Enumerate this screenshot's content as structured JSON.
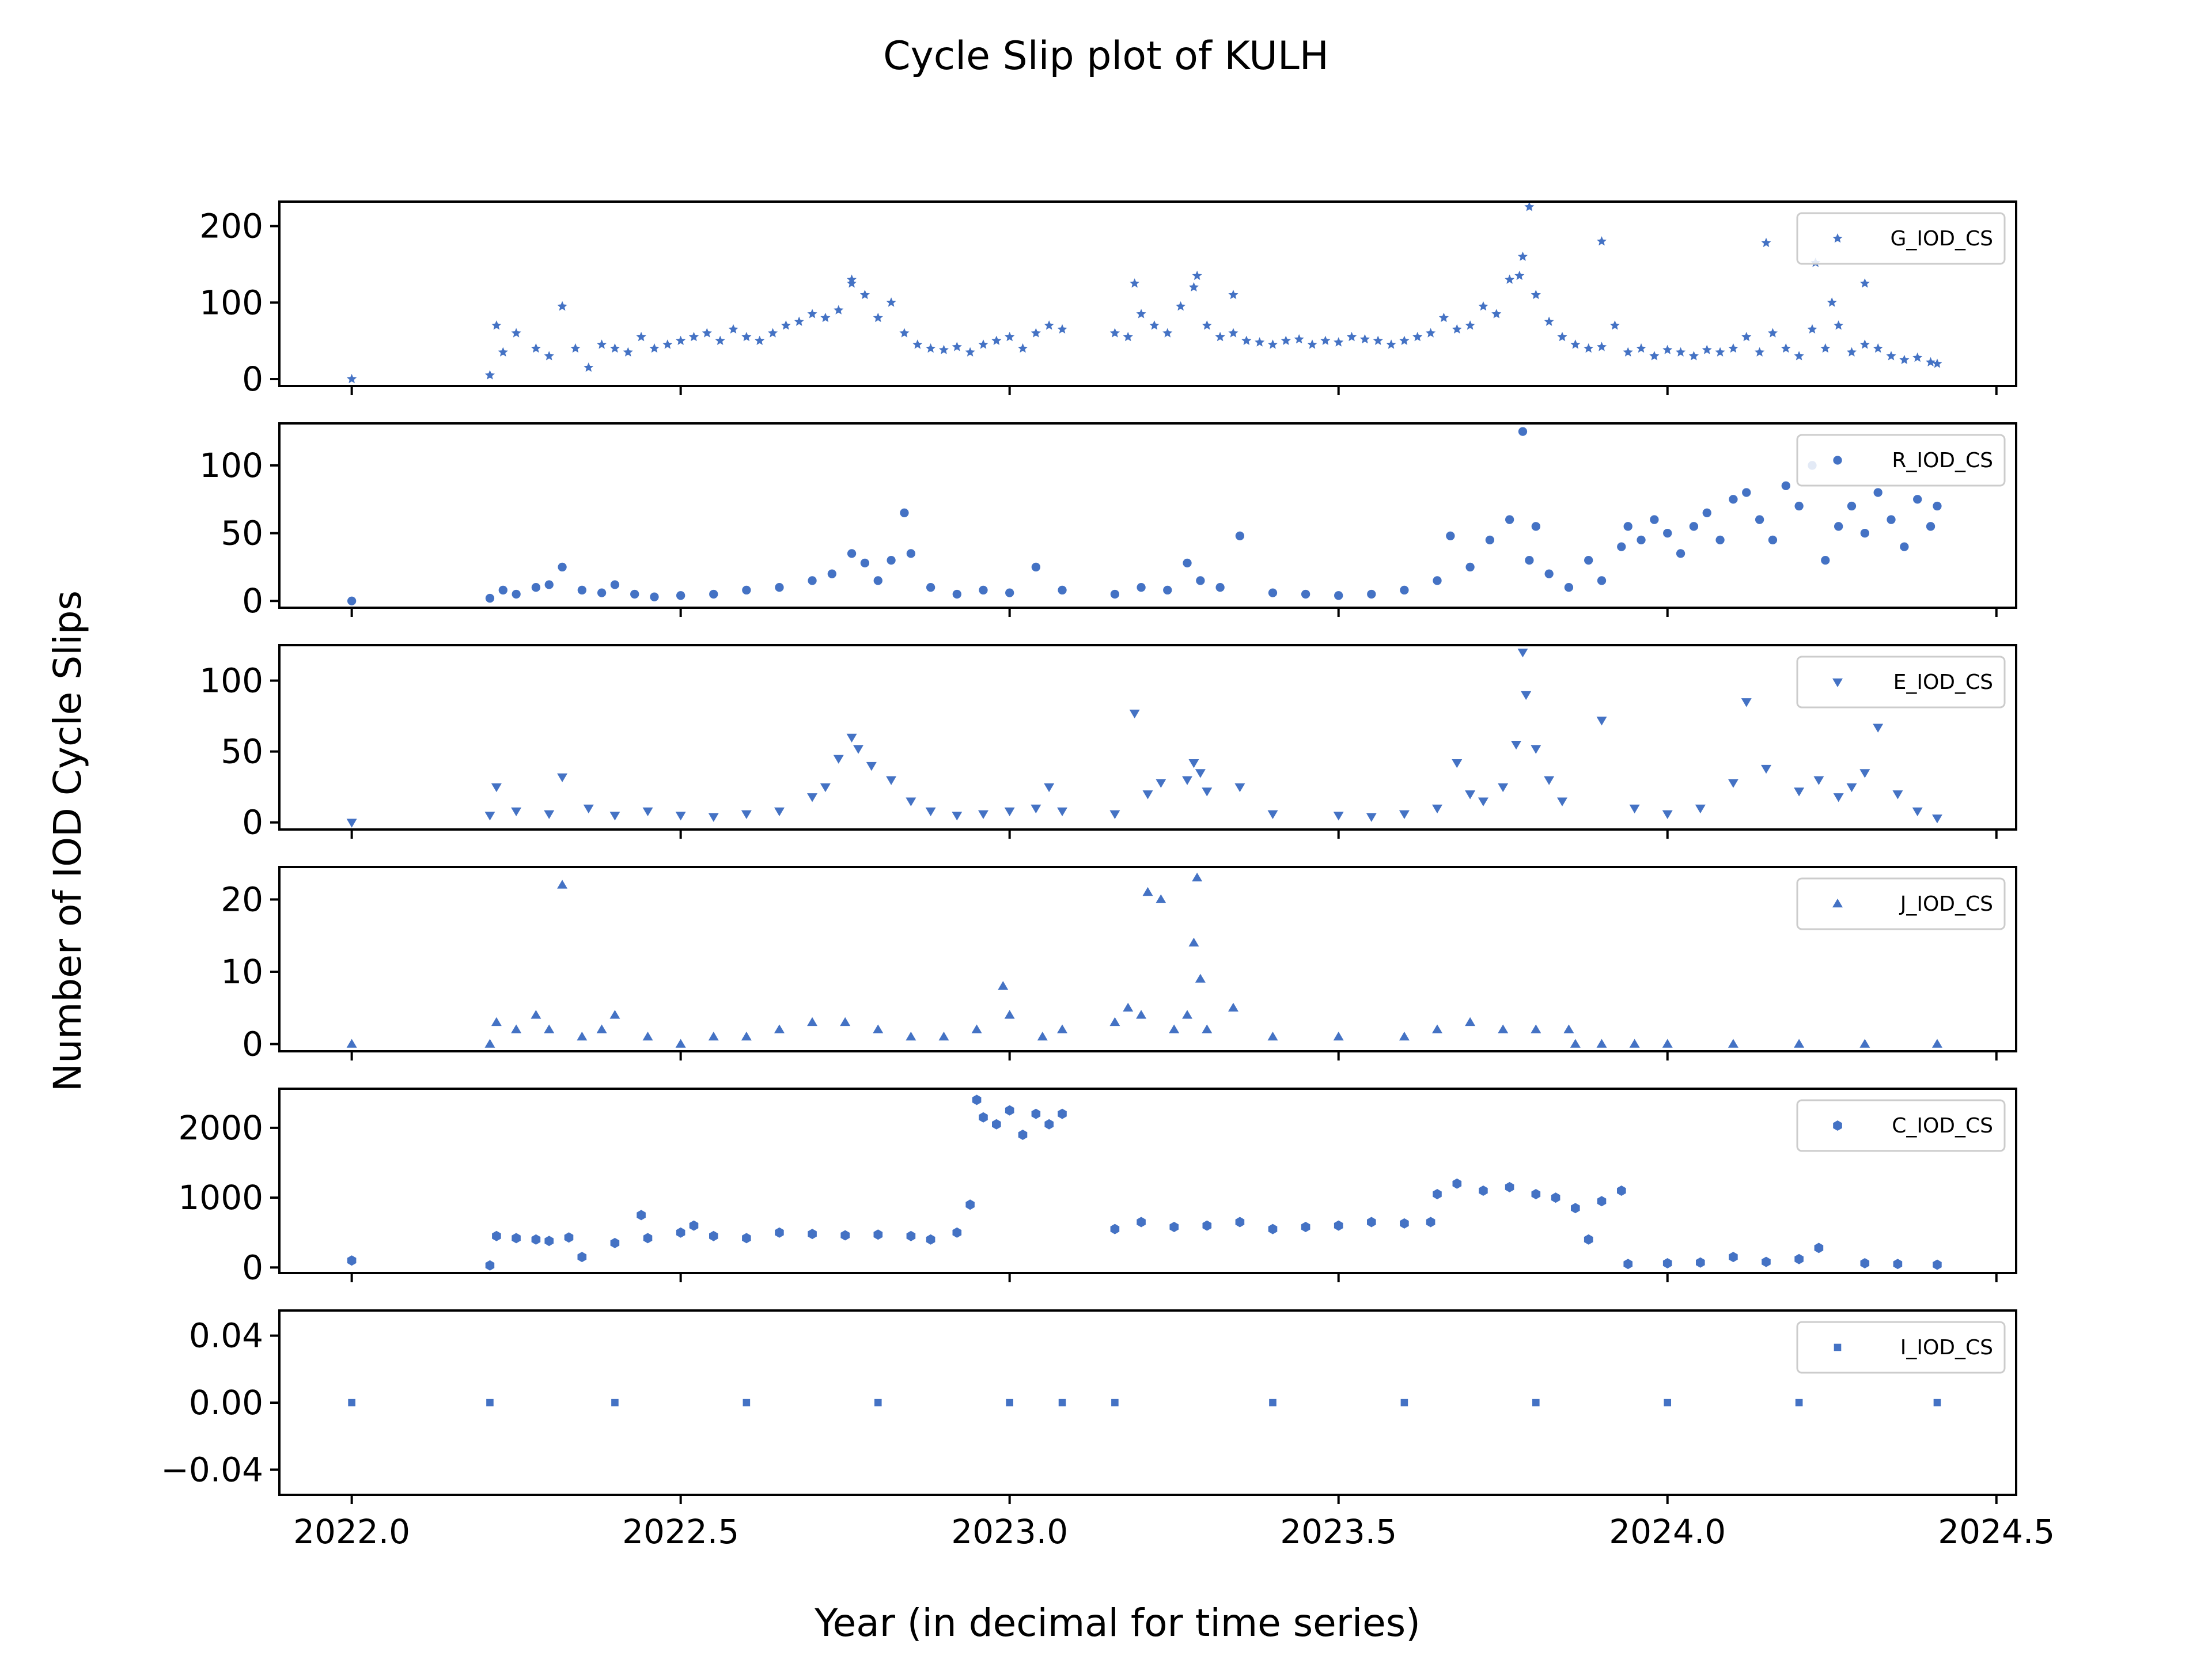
{
  "title": "Cycle Slip plot of KULH",
  "colors": {
    "marker": "#4472C4",
    "axis": "#000000",
    "legend_border": "#cccccc"
  },
  "chart_data": {
    "type": "scatter",
    "suptitle": "Cycle Slip plot of KULH",
    "xlabel": "Year (in decimal for time series)",
    "ylabel": "Number of IOD Cycle Slips",
    "xlim": [
      2021.89,
      2024.53
    ],
    "x_ticks": [
      2022.0,
      2022.5,
      2023.0,
      2023.5,
      2024.0,
      2024.5
    ],
    "x_tick_labels": [
      "2022.0",
      "2022.5",
      "2023.0",
      "2023.5",
      "2024.0",
      "2024.5"
    ],
    "legend_position": "top-right",
    "grid": false,
    "panels": [
      {
        "name": "G_IOD_CS",
        "marker": "star",
        "ylim": [
          -9,
          232
        ],
        "y_ticks": [
          0,
          100,
          200
        ],
        "y_tick_labels": [
          "0",
          "100",
          "200"
        ],
        "sample_x": [
          2022.0,
          2022.21,
          2022.22,
          2022.23,
          2022.25,
          2022.28,
          2022.3,
          2022.32,
          2022.34,
          2022.36,
          2022.38,
          2022.4,
          2022.42,
          2022.44,
          2022.46,
          2022.48,
          2022.5,
          2022.52,
          2022.54,
          2022.56,
          2022.58,
          2022.6,
          2022.62,
          2022.64,
          2022.66,
          2022.68,
          2022.7,
          2022.72,
          2022.74,
          2022.76,
          2022.78,
          2022.8,
          2022.82,
          2022.84,
          2022.86,
          2022.88,
          2022.9,
          2022.92,
          2022.94,
          2022.96,
          2022.98,
          2023.0,
          2023.02,
          2023.04,
          2023.06,
          2023.08,
          2023.16,
          2023.18,
          2023.2,
          2023.22,
          2023.24,
          2023.26,
          2023.28,
          2023.3,
          2023.32,
          2023.34,
          2023.36,
          2023.38,
          2023.4,
          2023.42,
          2023.44,
          2023.46,
          2023.48,
          2023.5,
          2023.52,
          2023.54,
          2023.56,
          2023.58,
          2023.6,
          2023.62,
          2023.64,
          2023.66,
          2023.68,
          2023.7,
          2023.72,
          2023.74,
          2023.76,
          2023.78,
          2023.8,
          2023.82,
          2023.84,
          2023.86,
          2023.88,
          2023.9,
          2023.92,
          2023.94,
          2023.96,
          2023.98,
          2024.0,
          2024.02,
          2024.04,
          2024.06,
          2024.08,
          2024.1,
          2024.12,
          2024.14,
          2024.16,
          2024.18,
          2024.2,
          2024.22,
          2024.24,
          2024.26,
          2024.28,
          2024.3,
          2024.32,
          2024.34,
          2024.36,
          2024.38,
          2024.4,
          2024.41,
          2023.79,
          2023.775,
          2023.9,
          2024.15,
          2024.225,
          2024.25,
          2024.3,
          2022.32,
          2022.76,
          2023.19,
          2023.285,
          2023.34
        ],
        "sample_y": [
          0,
          5,
          70,
          35,
          60,
          40,
          30,
          95,
          40,
          15,
          45,
          40,
          35,
          55,
          40,
          45,
          50,
          55,
          60,
          50,
          65,
          55,
          50,
          60,
          70,
          75,
          85,
          80,
          90,
          130,
          110,
          80,
          100,
          60,
          45,
          40,
          38,
          42,
          35,
          45,
          50,
          55,
          40,
          60,
          70,
          65,
          60,
          55,
          85,
          70,
          60,
          95,
          120,
          70,
          55,
          60,
          50,
          48,
          45,
          50,
          52,
          45,
          50,
          48,
          55,
          52,
          50,
          45,
          50,
          55,
          60,
          80,
          65,
          70,
          95,
          85,
          130,
          160,
          110,
          75,
          55,
          45,
          40,
          42,
          70,
          35,
          40,
          30,
          38,
          35,
          30,
          38,
          35,
          40,
          55,
          35,
          60,
          40,
          30,
          65,
          40,
          70,
          35,
          45,
          40,
          30,
          25,
          28,
          22,
          20,
          225,
          135,
          180,
          178,
          152,
          100,
          125,
          95,
          125,
          125,
          135,
          110
        ]
      },
      {
        "name": "R_IOD_CS",
        "marker": "circle",
        "ylim": [
          -5,
          131
        ],
        "y_ticks": [
          0,
          50,
          100
        ],
        "y_tick_labels": [
          "0",
          "50",
          "100"
        ],
        "sample_x": [
          2022.0,
          2022.21,
          2022.23,
          2022.25,
          2022.28,
          2022.3,
          2022.32,
          2022.35,
          2022.38,
          2022.4,
          2022.43,
          2022.46,
          2022.5,
          2022.55,
          2022.6,
          2022.65,
          2022.7,
          2022.73,
          2022.76,
          2022.78,
          2022.8,
          2022.82,
          2022.84,
          2022.85,
          2022.88,
          2022.92,
          2022.96,
          2023.0,
          2023.04,
          2023.08,
          2023.16,
          2023.2,
          2023.24,
          2023.27,
          2023.29,
          2023.32,
          2023.35,
          2023.4,
          2023.45,
          2023.5,
          2023.55,
          2023.6,
          2023.65,
          2023.67,
          2023.7,
          2023.73,
          2023.76,
          2023.78,
          2023.79,
          2023.8,
          2023.82,
          2023.85,
          2023.88,
          2023.9,
          2023.93,
          2023.94,
          2023.96,
          2023.98,
          2024.0,
          2024.02,
          2024.04,
          2024.06,
          2024.08,
          2024.1,
          2024.12,
          2024.14,
          2024.16,
          2024.18,
          2024.2,
          2024.22,
          2024.24,
          2024.26,
          2024.28,
          2024.3,
          2024.32,
          2024.34,
          2024.36,
          2024.38,
          2024.4,
          2024.41
        ],
        "sample_y": [
          0,
          2,
          8,
          5,
          10,
          12,
          25,
          8,
          6,
          12,
          5,
          3,
          4,
          5,
          8,
          10,
          15,
          20,
          35,
          28,
          15,
          30,
          65,
          35,
          10,
          5,
          8,
          6,
          25,
          8,
          5,
          10,
          8,
          28,
          15,
          10,
          48,
          6,
          5,
          4,
          5,
          8,
          15,
          48,
          25,
          45,
          60,
          125,
          30,
          55,
          20,
          10,
          30,
          15,
          40,
          55,
          45,
          60,
          50,
          35,
          55,
          65,
          45,
          75,
          80,
          60,
          45,
          85,
          70,
          100,
          30,
          55,
          70,
          50,
          80,
          60,
          40,
          75,
          55,
          70
        ]
      },
      {
        "name": "E_IOD_CS",
        "marker": "triangle-down",
        "ylim": [
          -5,
          125
        ],
        "y_ticks": [
          0,
          50,
          100
        ],
        "y_tick_labels": [
          "0",
          "50",
          "100"
        ],
        "sample_x": [
          2022.0,
          2022.21,
          2022.22,
          2022.25,
          2022.3,
          2022.32,
          2022.36,
          2022.4,
          2022.45,
          2022.5,
          2022.55,
          2022.6,
          2022.65,
          2022.7,
          2022.72,
          2022.74,
          2022.76,
          2022.77,
          2022.79,
          2022.82,
          2022.85,
          2022.88,
          2022.92,
          2022.96,
          2023.0,
          2023.04,
          2023.06,
          2023.08,
          2023.16,
          2023.19,
          2023.21,
          2023.23,
          2023.27,
          2023.28,
          2023.29,
          2023.3,
          2023.35,
          2023.4,
          2023.5,
          2023.55,
          2023.6,
          2023.65,
          2023.68,
          2023.7,
          2023.72,
          2023.75,
          2023.77,
          2023.78,
          2023.785,
          2023.8,
          2023.82,
          2023.84,
          2023.9,
          2023.95,
          2024.0,
          2024.05,
          2024.1,
          2024.12,
          2024.15,
          2024.2,
          2024.23,
          2024.26,
          2024.28,
          2024.3,
          2024.32,
          2024.35,
          2024.38,
          2024.41
        ],
        "sample_y": [
          0,
          5,
          25,
          8,
          6,
          32,
          10,
          5,
          8,
          5,
          4,
          6,
          8,
          18,
          25,
          45,
          60,
          52,
          40,
          30,
          15,
          8,
          5,
          6,
          8,
          10,
          25,
          8,
          6,
          77,
          20,
          28,
          30,
          42,
          35,
          22,
          25,
          6,
          5,
          4,
          6,
          10,
          42,
          20,
          15,
          25,
          55,
          120,
          90,
          52,
          30,
          15,
          72,
          10,
          6,
          10,
          28,
          85,
          38,
          22,
          30,
          18,
          25,
          35,
          67,
          20,
          8,
          3
        ]
      },
      {
        "name": "J_IOD_CS",
        "marker": "triangle-up",
        "ylim": [
          -1,
          24.5
        ],
        "y_ticks": [
          0,
          10,
          20
        ],
        "y_tick_labels": [
          "0",
          "10",
          "20"
        ],
        "sample_x": [
          2022.0,
          2022.21,
          2022.22,
          2022.25,
          2022.28,
          2022.3,
          2022.32,
          2022.35,
          2022.38,
          2022.4,
          2022.45,
          2022.5,
          2022.55,
          2022.6,
          2022.65,
          2022.7,
          2022.75,
          2022.8,
          2022.85,
          2022.9,
          2022.95,
          2022.99,
          2023.0,
          2023.05,
          2023.08,
          2023.16,
          2023.18,
          2023.2,
          2023.21,
          2023.23,
          2023.25,
          2023.27,
          2023.28,
          2023.285,
          2023.29,
          2023.3,
          2023.34,
          2023.4,
          2023.5,
          2023.6,
          2023.65,
          2023.7,
          2023.75,
          2023.8,
          2023.85,
          2023.86,
          2023.9,
          2023.95,
          2024.0,
          2024.1,
          2024.2,
          2024.3,
          2024.41
        ],
        "sample_y": [
          0,
          0,
          3,
          2,
          4,
          2,
          22,
          1,
          2,
          4,
          1,
          0,
          1,
          1,
          2,
          3,
          3,
          2,
          1,
          1,
          2,
          8,
          4,
          1,
          2,
          3,
          5,
          4,
          21,
          20,
          2,
          4,
          14,
          23,
          9,
          2,
          5,
          1,
          1,
          1,
          2,
          3,
          2,
          2,
          2,
          0,
          0,
          0,
          0,
          0,
          0,
          0,
          0
        ]
      },
      {
        "name": "C_IOD_CS",
        "marker": "hexagon",
        "ylim": [
          -80,
          2560
        ],
        "y_ticks": [
          0,
          1000,
          2000
        ],
        "y_tick_labels": [
          "0",
          "1000",
          "2000"
        ],
        "sample_x": [
          2022.0,
          2022.21,
          2022.22,
          2022.25,
          2022.28,
          2022.3,
          2022.33,
          2022.35,
          2022.4,
          2022.44,
          2022.45,
          2022.5,
          2022.52,
          2022.55,
          2022.6,
          2022.65,
          2022.7,
          2022.75,
          2022.8,
          2022.85,
          2022.88,
          2022.92,
          2022.94,
          2022.95,
          2022.96,
          2022.98,
          2023.0,
          2023.02,
          2023.04,
          2023.06,
          2023.08,
          2023.16,
          2023.2,
          2023.25,
          2023.3,
          2023.35,
          2023.4,
          2023.45,
          2023.5,
          2023.55,
          2023.6,
          2023.64,
          2023.65,
          2023.68,
          2023.72,
          2023.76,
          2023.8,
          2023.83,
          2023.86,
          2023.88,
          2023.9,
          2023.93,
          2023.94,
          2024.0,
          2024.05,
          2024.1,
          2024.15,
          2024.2,
          2024.23,
          2024.3,
          2024.35,
          2024.41
        ],
        "sample_y": [
          100,
          30,
          450,
          420,
          400,
          380,
          430,
          150,
          350,
          750,
          420,
          500,
          600,
          450,
          420,
          500,
          480,
          460,
          470,
          450,
          400,
          500,
          900,
          2400,
          2150,
          2050,
          2250,
          1900,
          2200,
          2050,
          2200,
          550,
          650,
          580,
          600,
          650,
          550,
          580,
          600,
          650,
          630,
          650,
          1050,
          1200,
          1100,
          1150,
          1050,
          1000,
          850,
          400,
          950,
          1100,
          50,
          60,
          70,
          150,
          80,
          120,
          280,
          60,
          50,
          40
        ]
      },
      {
        "name": "I_IOD_CS",
        "marker": "square",
        "ylim": [
          -0.055,
          0.055
        ],
        "y_ticks": [
          -0.04,
          0.0,
          0.04
        ],
        "y_tick_labels": [
          "−0.04",
          "0.00",
          "0.04"
        ],
        "sample_x": [
          2022.0,
          2022.21,
          2022.4,
          2022.6,
          2022.8,
          2023.0,
          2023.08,
          2023.16,
          2023.4,
          2023.6,
          2023.8,
          2024.0,
          2024.2,
          2024.41
        ],
        "sample_y": [
          0,
          0,
          0,
          0,
          0,
          0,
          0,
          0,
          0,
          0,
          0,
          0,
          0,
          0
        ]
      }
    ]
  }
}
